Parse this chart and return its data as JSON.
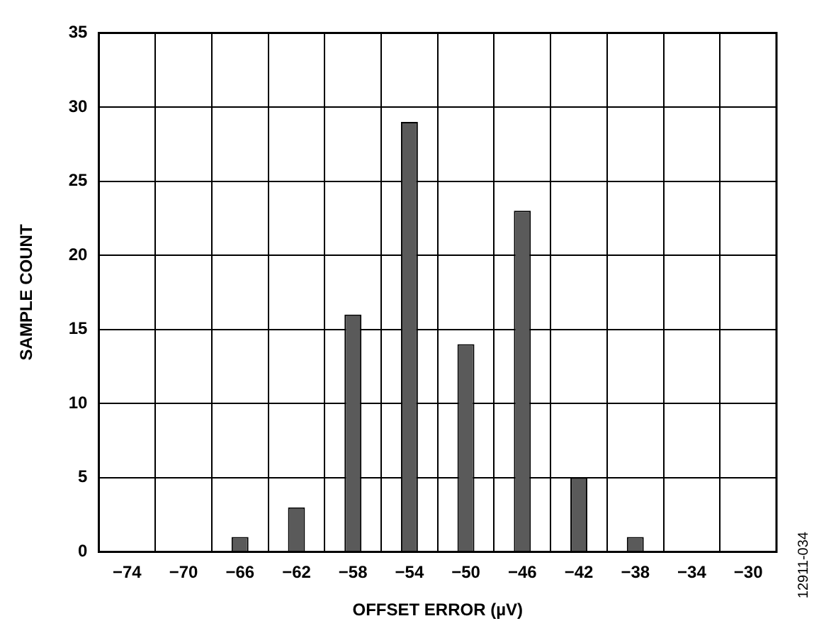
{
  "chart_data": {
    "type": "bar",
    "xlabel": "OFFSET ERROR (µV)",
    "ylabel": "SAMPLE COUNT",
    "categories": [
      "−74",
      "−70",
      "−66",
      "−62",
      "−58",
      "−54",
      "−50",
      "−46",
      "−42",
      "−38",
      "−34",
      "−30"
    ],
    "values": [
      0,
      0,
      1,
      3,
      16,
      29,
      14,
      23,
      5,
      1,
      0,
      0
    ],
    "color": "#5a5a5a",
    "ylim": [
      0,
      35
    ],
    "yticks": [
      0,
      5,
      10,
      15,
      20,
      25,
      30,
      35
    ],
    "grid": true,
    "legend": false,
    "annotations": [
      "12911-034"
    ]
  }
}
